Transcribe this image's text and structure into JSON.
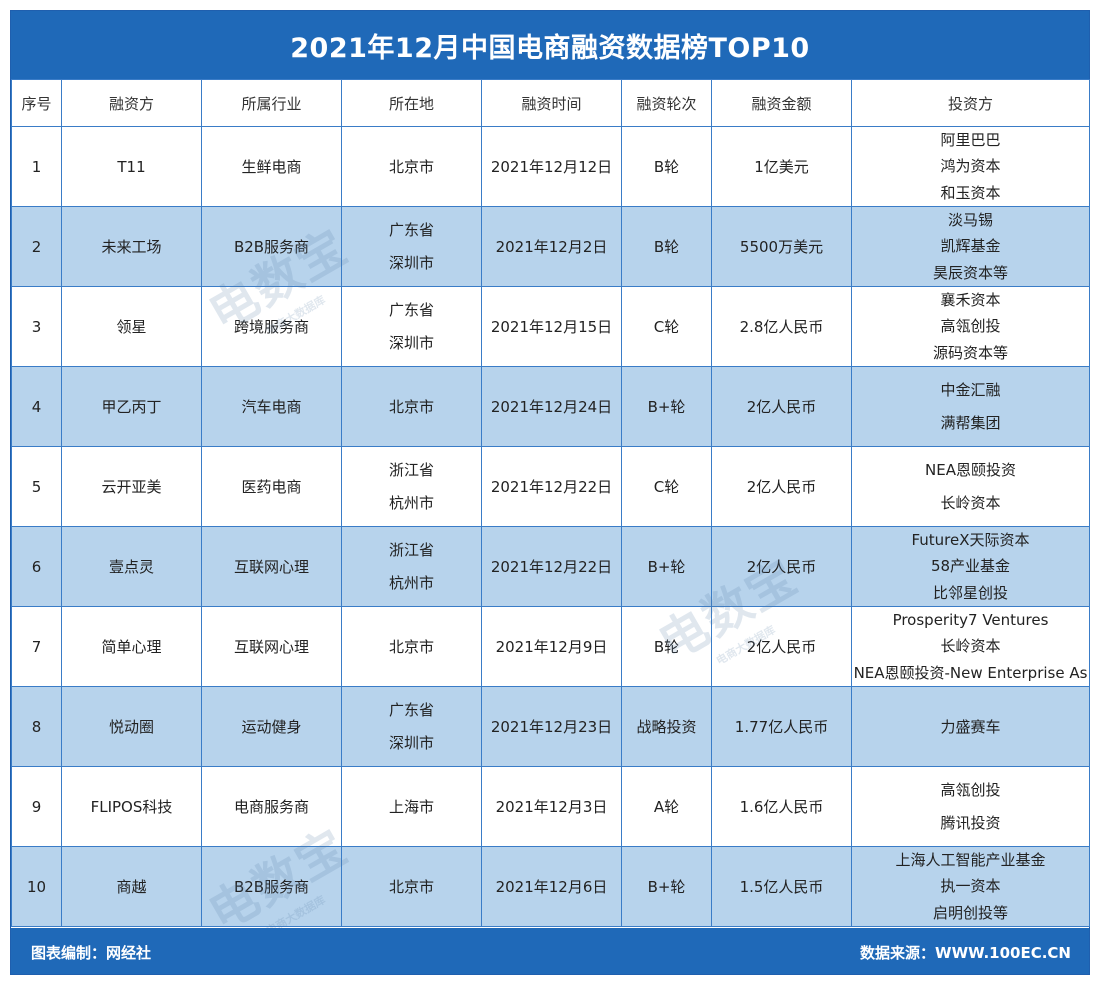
{
  "title": "2021年12月中国电商融资数据榜TOP10",
  "headers": [
    "序号",
    "融资方",
    "所属行业",
    "所在地",
    "融资时间",
    "融资轮次",
    "融资金额",
    "投资方"
  ],
  "rows": [
    {
      "no": "1",
      "company": "T11",
      "industry": "生鲜电商",
      "location": [
        "北京市"
      ],
      "date": "2021年12月12日",
      "round": "B轮",
      "amount": "1亿美元",
      "investors": [
        "阿里巴巴",
        "鸿为资本",
        "和玉资本"
      ]
    },
    {
      "no": "2",
      "company": "未来工场",
      "industry": "B2B服务商",
      "location": [
        "广东省",
        "深圳市"
      ],
      "date": "2021年12月2日",
      "round": "B轮",
      "amount": "5500万美元",
      "investors": [
        "淡马锡",
        "凯辉基金",
        "昊辰资本等"
      ]
    },
    {
      "no": "3",
      "company": "领星",
      "industry": "跨境服务商",
      "location": [
        "广东省",
        "深圳市"
      ],
      "date": "2021年12月15日",
      "round": "C轮",
      "amount": "2.8亿人民币",
      "investors": [
        "襄禾资本",
        "高瓴创投",
        "源码资本等"
      ]
    },
    {
      "no": "4",
      "company": "甲乙丙丁",
      "industry": "汽车电商",
      "location": [
        "北京市"
      ],
      "date": "2021年12月24日",
      "round": "B+轮",
      "amount": "2亿人民币",
      "investors": [
        "中金汇融",
        "满帮集团"
      ]
    },
    {
      "no": "5",
      "company": "云开亚美",
      "industry": "医药电商",
      "location": [
        "浙江省",
        "杭州市"
      ],
      "date": "2021年12月22日",
      "round": "C轮",
      "amount": "2亿人民币",
      "investors": [
        "NEA恩颐投资",
        "长岭资本"
      ]
    },
    {
      "no": "6",
      "company": "壹点灵",
      "industry": "互联网心理",
      "location": [
        "浙江省",
        "杭州市"
      ],
      "date": "2021年12月22日",
      "round": "B+轮",
      "amount": "2亿人民币",
      "investors": [
        "FutureX天际资本",
        "58产业基金",
        "比邻星创投"
      ]
    },
    {
      "no": "7",
      "company": "简单心理",
      "industry": "互联网心理",
      "location": [
        "北京市"
      ],
      "date": "2021年12月9日",
      "round": "B轮",
      "amount": "2亿人民币",
      "investors": [
        "Prosperity7 Ventures",
        "长岭资本",
        "NEA恩颐投资-New Enterprise As"
      ]
    },
    {
      "no": "8",
      "company": "悦动圈",
      "industry": "运动健身",
      "location": [
        "广东省",
        "深圳市"
      ],
      "date": "2021年12月23日",
      "round": "战略投资",
      "amount": "1.77亿人民币",
      "investors": [
        "力盛赛车"
      ]
    },
    {
      "no": "9",
      "company": "FLIPOS科技",
      "industry": "电商服务商",
      "location": [
        "上海市"
      ],
      "date": "2021年12月3日",
      "round": "A轮",
      "amount": "1.6亿人民币",
      "investors": [
        "高瓴创投",
        "腾讯投资"
      ]
    },
    {
      "no": "10",
      "company": "商越",
      "industry": "B2B服务商",
      "location": [
        "北京市"
      ],
      "date": "2021年12月6日",
      "round": "B+轮",
      "amount": "1.5亿人民币",
      "investors": [
        "上海人工智能产业基金",
        "执一资本",
        "启明创投等"
      ]
    }
  ],
  "footer": {
    "left": "图表编制：网经社",
    "right": "数据来源：WWW.100EC.CN"
  },
  "watermark": {
    "logo": "电数宝",
    "sub": "电商大数据库"
  },
  "colors": {
    "title_bg": "#1f69b8",
    "alt_row": "#b7d3ec",
    "border": "#3a7cc7"
  }
}
